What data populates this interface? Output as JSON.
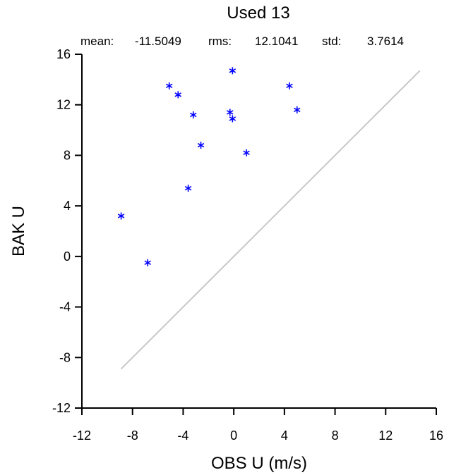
{
  "chart_data": {
    "type": "scatter",
    "title": "Used  13",
    "stats": {
      "mean_label": "mean:",
      "mean_value": "-11.5049",
      "rms_label": "rms:",
      "rms_value": "12.1041",
      "std_label": "std:",
      "std_value": "3.7614"
    },
    "xlabel": "OBS U  (m/s)",
    "ylabel": "BAK U",
    "xlim": [
      -12,
      16
    ],
    "ylim": [
      -12,
      16
    ],
    "xticks": [
      "-12",
      "-8",
      "-4",
      "0",
      "4",
      "8",
      "12",
      "16"
    ],
    "yticks": [
      "-12",
      "-8",
      "-4",
      "0",
      "4",
      "8",
      "12",
      "16"
    ],
    "marker": "*",
    "marker_color": "#0000ff",
    "reference_line": {
      "x": [
        -8.9,
        14.7
      ],
      "y": [
        -8.9,
        14.7
      ],
      "color": "#c8c8c8"
    },
    "points": [
      {
        "x": -8.9,
        "y": 3.2
      },
      {
        "x": -6.8,
        "y": -0.5
      },
      {
        "x": -5.1,
        "y": 13.5
      },
      {
        "x": -4.4,
        "y": 12.8
      },
      {
        "x": -3.2,
        "y": 11.2
      },
      {
        "x": -3.6,
        "y": 5.4
      },
      {
        "x": -2.6,
        "y": 8.8
      },
      {
        "x": -0.3,
        "y": 11.4
      },
      {
        "x": -0.1,
        "y": 10.9
      },
      {
        "x": -0.1,
        "y": 14.7
      },
      {
        "x": 1.0,
        "y": 8.2
      },
      {
        "x": 4.4,
        "y": 13.5
      },
      {
        "x": 5.0,
        "y": 11.6
      }
    ]
  }
}
